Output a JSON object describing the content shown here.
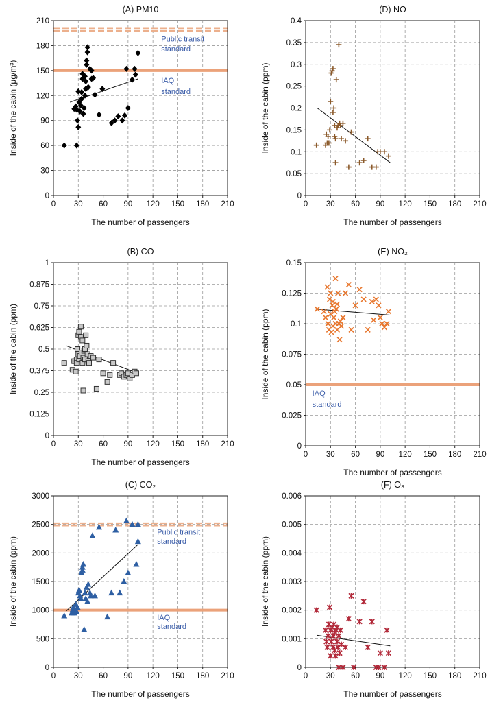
{
  "chart_data": [
    {
      "id": "A",
      "type": "scatter",
      "title": "(A) PM10",
      "xlabel": "The number of passengers",
      "ylabel": "Inside of the cabin (μg/m³)",
      "xlim": [
        0,
        210
      ],
      "xticks": [
        0,
        30,
        60,
        90,
        120,
        150,
        180,
        210
      ],
      "ylim": [
        0,
        210
      ],
      "yticks": [
        0,
        30,
        60,
        90,
        120,
        150,
        180,
        210
      ],
      "ytick_labels": [
        "0",
        "30",
        "60",
        "90",
        "120",
        "150",
        "180",
        "210"
      ],
      "marker": "diamond",
      "color": "#000000",
      "trend": [
        [
          20,
          112
        ],
        [
          102,
          140
        ]
      ],
      "reference_lines": [
        {
          "value": 199,
          "label": "Public transit standard",
          "label_lines": [
            "Public transit",
            "standard"
          ],
          "style": "dashed",
          "label_x": 130,
          "label_y": [
            185,
            173
          ]
        },
        {
          "value": 150,
          "label": "IAQ standard",
          "label_lines": [
            "IAQ",
            "standard"
          ],
          "style": "solid",
          "label_x": 130,
          "label_y": [
            135,
            122
          ]
        }
      ],
      "points": [
        [
          13,
          60
        ],
        [
          28,
          60
        ],
        [
          25,
          104
        ],
        [
          27,
          107
        ],
        [
          28,
          103
        ],
        [
          29,
          90
        ],
        [
          30,
          82
        ],
        [
          30,
          125
        ],
        [
          31,
          112
        ],
        [
          32,
          101
        ],
        [
          33,
          108
        ],
        [
          34,
          116
        ],
        [
          34,
          124
        ],
        [
          35,
          140
        ],
        [
          35,
          146
        ],
        [
          36,
          98
        ],
        [
          37,
          105
        ],
        [
          38,
          120
        ],
        [
          38,
          143
        ],
        [
          39,
          128
        ],
        [
          39,
          137
        ],
        [
          40,
          157
        ],
        [
          40,
          162
        ],
        [
          41,
          172
        ],
        [
          41,
          178
        ],
        [
          42,
          130
        ],
        [
          44,
          152
        ],
        [
          46,
          150
        ],
        [
          46,
          140
        ],
        [
          48,
          141
        ],
        [
          50,
          121
        ],
        [
          55,
          97
        ],
        [
          59,
          128
        ],
        [
          70,
          87
        ],
        [
          74,
          90
        ],
        [
          78,
          95
        ],
        [
          83,
          90
        ],
        [
          86,
          96
        ],
        [
          88,
          152
        ],
        [
          90,
          105
        ],
        [
          95,
          139
        ],
        [
          98,
          152
        ],
        [
          99,
          145
        ],
        [
          102,
          171
        ]
      ]
    },
    {
      "id": "B",
      "type": "scatter",
      "title": "(B) CO",
      "xlabel": "The number of passengers",
      "ylabel": "Inside of the cabin (ppm)",
      "xlim": [
        0,
        210
      ],
      "xticks": [
        0,
        30,
        60,
        90,
        120,
        150,
        180,
        210
      ],
      "ylim": [
        0,
        1
      ],
      "yticks": [
        0,
        0.125,
        0.25,
        0.375,
        0.5,
        0.625,
        0.75,
        0.875,
        1
      ],
      "ytick_labels": [
        "0",
        "0.125",
        "0.25",
        "0.375",
        "0.5",
        "0.625",
        "0.75",
        "0.875",
        "1"
      ],
      "marker": "square",
      "color": "#555555",
      "trend": [
        [
          15,
          0.52
        ],
        [
          102,
          0.36
        ]
      ],
      "reference_lines": [],
      "points": [
        [
          13,
          0.42
        ],
        [
          23,
          0.38
        ],
        [
          25,
          0.43
        ],
        [
          27,
          0.37
        ],
        [
          28,
          0.44
        ],
        [
          28,
          0.42
        ],
        [
          29,
          0.5
        ],
        [
          30,
          0.58
        ],
        [
          30,
          0.47
        ],
        [
          31,
          0.6
        ],
        [
          31,
          0.44
        ],
        [
          32,
          0.46
        ],
        [
          33,
          0.57
        ],
        [
          33,
          0.63
        ],
        [
          34,
          0.48
        ],
        [
          35,
          0.42
        ],
        [
          35,
          0.55
        ],
        [
          36,
          0.26
        ],
        [
          36,
          0.45
        ],
        [
          37,
          0.49
        ],
        [
          38,
          0.5
        ],
        [
          38,
          0.44
        ],
        [
          39,
          0.58
        ],
        [
          40,
          0.52
        ],
        [
          41,
          0.47
        ],
        [
          42,
          0.43
        ],
        [
          43,
          0.42
        ],
        [
          45,
          0.46
        ],
        [
          48,
          0.45
        ],
        [
          52,
          0.27
        ],
        [
          55,
          0.44
        ],
        [
          60,
          0.36
        ],
        [
          65,
          0.31
        ],
        [
          68,
          0.35
        ],
        [
          72,
          0.42
        ],
        [
          80,
          0.35
        ],
        [
          82,
          0.36
        ],
        [
          85,
          0.34
        ],
        [
          88,
          0.35
        ],
        [
          90,
          0.36
        ],
        [
          92,
          0.33
        ],
        [
          95,
          0.35
        ],
        [
          98,
          0.37
        ],
        [
          100,
          0.36
        ]
      ]
    },
    {
      "id": "C",
      "type": "scatter",
      "title": "(C) CO₂",
      "xlabel": "The number of passengers",
      "ylabel": "Inside of the cabin (ppm)",
      "xlim": [
        0,
        210
      ],
      "xticks": [
        0,
        30,
        60,
        90,
        120,
        150,
        180,
        210
      ],
      "ylim": [
        0,
        3000
      ],
      "yticks": [
        0,
        500,
        1000,
        1500,
        2000,
        2500,
        3000
      ],
      "ytick_labels": [
        "0",
        "500",
        "1000",
        "1500",
        "2000",
        "2500",
        "3000"
      ],
      "marker": "triangle",
      "color": "#2e5fa3",
      "trend": [
        [
          15,
          980
        ],
        [
          102,
          2150
        ]
      ],
      "reference_lines": [
        {
          "value": 2500,
          "label": "Public transit standard",
          "label_lines": [
            "Public transit",
            "standard"
          ],
          "style": "dashed",
          "label_x": 125,
          "label_y": [
            2320,
            2160
          ]
        },
        {
          "value": 1000,
          "label": "IAQ standard",
          "label_lines": [
            "IAQ",
            "standard"
          ],
          "style": "solid",
          "label_x": 125,
          "label_y": [
            830,
            670
          ]
        }
      ],
      "points": [
        [
          13,
          900
        ],
        [
          22,
          950
        ],
        [
          23,
          1000
        ],
        [
          24,
          1050
        ],
        [
          25,
          950
        ],
        [
          26,
          1000
        ],
        [
          27,
          1100
        ],
        [
          28,
          970
        ],
        [
          29,
          1050
        ],
        [
          30,
          1300
        ],
        [
          31,
          1350
        ],
        [
          32,
          1250
        ],
        [
          33,
          1200
        ],
        [
          34,
          1650
        ],
        [
          35,
          1700
        ],
        [
          35,
          1750
        ],
        [
          36,
          1800
        ],
        [
          37,
          660
        ],
        [
          38,
          1300
        ],
        [
          39,
          1200
        ],
        [
          40,
          1400
        ],
        [
          41,
          1150
        ],
        [
          42,
          1450
        ],
        [
          44,
          1300
        ],
        [
          45,
          1250
        ],
        [
          47,
          2300
        ],
        [
          50,
          1250
        ],
        [
          55,
          2450
        ],
        [
          65,
          880
        ],
        [
          70,
          1300
        ],
        [
          75,
          2400
        ],
        [
          80,
          1300
        ],
        [
          85,
          1500
        ],
        [
          88,
          2560
        ],
        [
          90,
          1650
        ],
        [
          95,
          2500
        ],
        [
          100,
          1800
        ],
        [
          102,
          2500
        ],
        [
          102,
          2200
        ]
      ]
    },
    {
      "id": "D",
      "type": "scatter",
      "title": "(D) NO",
      "xlabel": "The number of passengers",
      "ylabel": "Inside of the cabin (ppm)",
      "xlim": [
        0,
        210
      ],
      "xticks": [
        0,
        30,
        60,
        90,
        120,
        150,
        180,
        210
      ],
      "ylim": [
        0,
        0.4
      ],
      "yticks": [
        0,
        0.05,
        0.1,
        0.15,
        0.2,
        0.25,
        0.3,
        0.35,
        0.4
      ],
      "ytick_labels": [
        "0",
        "0.05",
        "0.1",
        "0.15",
        "0.2",
        "0.25",
        "0.3",
        "0.35",
        "0.4"
      ],
      "marker": "plus",
      "color": "#8b5a2b",
      "trend": [
        [
          14,
          0.2
        ],
        [
          102,
          0.075
        ]
      ],
      "reference_lines": [],
      "points": [
        [
          13,
          0.115
        ],
        [
          24,
          0.115
        ],
        [
          25,
          0.14
        ],
        [
          26,
          0.12
        ],
        [
          27,
          0.135
        ],
        [
          28,
          0.12
        ],
        [
          29,
          0.15
        ],
        [
          30,
          0.215
        ],
        [
          31,
          0.28
        ],
        [
          32,
          0.285
        ],
        [
          33,
          0.29
        ],
        [
          33,
          0.19
        ],
        [
          34,
          0.2
        ],
        [
          35,
          0.16
        ],
        [
          35,
          0.135
        ],
        [
          36,
          0.13
        ],
        [
          36,
          0.075
        ],
        [
          37,
          0.265
        ],
        [
          38,
          0.155
        ],
        [
          39,
          0.16
        ],
        [
          40,
          0.345
        ],
        [
          41,
          0.165
        ],
        [
          42,
          0.16
        ],
        [
          43,
          0.13
        ],
        [
          45,
          0.165
        ],
        [
          48,
          0.125
        ],
        [
          52,
          0.065
        ],
        [
          55,
          0.145
        ],
        [
          65,
          0.075
        ],
        [
          70,
          0.08
        ],
        [
          75,
          0.13
        ],
        [
          80,
          0.065
        ],
        [
          85,
          0.065
        ],
        [
          87,
          0.1
        ],
        [
          90,
          0.1
        ],
        [
          95,
          0.1
        ],
        [
          100,
          0.09
        ]
      ]
    },
    {
      "id": "E",
      "type": "scatter",
      "title": "(E) NO₂",
      "xlabel": "The number of passengers",
      "ylabel": "Inside of the cabin (ppm)",
      "xlim": [
        0,
        210
      ],
      "xticks": [
        0,
        30,
        60,
        90,
        120,
        150,
        180,
        210
      ],
      "ylim": [
        0,
        0.15
      ],
      "yticks": [
        0,
        0.025,
        0.05,
        0.075,
        0.1,
        0.125,
        0.15
      ],
      "ytick_labels": [
        "0",
        "0.025",
        "0.05",
        "0.075",
        "0.1",
        "0.125",
        "0.15"
      ],
      "marker": "x",
      "color": "#e8772e",
      "trend": [
        [
          12,
          0.112
        ],
        [
          102,
          0.107
        ]
      ],
      "reference_lines": [
        {
          "value": 0.05,
          "label": "IAQ standard",
          "label_lines": [
            "IAQ",
            "standard"
          ],
          "style": "solid",
          "label_x": 8,
          "label_y": [
            0.041,
            0.032
          ]
        }
      ],
      "points": [
        [
          14,
          0.112
        ],
        [
          22,
          0.11
        ],
        [
          24,
          0.105
        ],
        [
          26,
          0.13
        ],
        [
          27,
          0.1
        ],
        [
          28,
          0.095
        ],
        [
          29,
          0.12
        ],
        [
          30,
          0.108
        ],
        [
          30,
          0.125
        ],
        [
          31,
          0.093
        ],
        [
          32,
          0.115
        ],
        [
          33,
          0.118
        ],
        [
          33,
          0.098
        ],
        [
          34,
          0.105
        ],
        [
          35,
          0.11
        ],
        [
          36,
          0.1
        ],
        [
          36,
          0.137
        ],
        [
          37,
          0.112
        ],
        [
          38,
          0.095
        ],
        [
          38,
          0.116
        ],
        [
          39,
          0.125
        ],
        [
          40,
          0.1
        ],
        [
          41,
          0.087
        ],
        [
          42,
          0.102
        ],
        [
          43,
          0.098
        ],
        [
          45,
          0.105
        ],
        [
          48,
          0.125
        ],
        [
          52,
          0.132
        ],
        [
          55,
          0.095
        ],
        [
          60,
          0.115
        ],
        [
          65,
          0.128
        ],
        [
          70,
          0.12
        ],
        [
          75,
          0.095
        ],
        [
          80,
          0.118
        ],
        [
          82,
          0.103
        ],
        [
          85,
          0.12
        ],
        [
          88,
          0.115
        ],
        [
          90,
          0.105
        ],
        [
          92,
          0.1
        ],
        [
          95,
          0.097
        ],
        [
          98,
          0.1
        ],
        [
          100,
          0.11
        ]
      ]
    },
    {
      "id": "F",
      "type": "scatter",
      "title": "(F) O₃",
      "xlabel": "The number of passengers",
      "ylabel": "Inside of the cabin (ppm)",
      "xlim": [
        0,
        210
      ],
      "xticks": [
        0,
        30,
        60,
        90,
        120,
        150,
        180,
        210
      ],
      "ylim": [
        0,
        0.006
      ],
      "yticks": [
        0,
        0.001,
        0.002,
        0.003,
        0.004,
        0.005,
        0.006
      ],
      "ytick_labels": [
        "0",
        "0.001",
        "0.002",
        "0.003",
        "0.004",
        "0.005",
        "0.006"
      ],
      "marker": "star",
      "color": "#b22a3a",
      "trend": [
        [
          14,
          0.00112
        ],
        [
          102,
          0.00075
        ]
      ],
      "reference_lines": [],
      "points": [
        [
          13,
          0.002
        ],
        [
          24,
          0.0013
        ],
        [
          25,
          0.0009
        ],
        [
          26,
          0.0007
        ],
        [
          27,
          0.0011
        ],
        [
          28,
          0.0015
        ],
        [
          29,
          0.0021
        ],
        [
          30,
          0.0004
        ],
        [
          30,
          0.0013
        ],
        [
          31,
          0.0009
        ],
        [
          32,
          0.0014
        ],
        [
          33,
          0.0007
        ],
        [
          33,
          0.0011
        ],
        [
          34,
          0.0015
        ],
        [
          35,
          0.0006
        ],
        [
          35,
          0.0012
        ],
        [
          36,
          0.0004
        ],
        [
          37,
          0.0013
        ],
        [
          38,
          0.0014
        ],
        [
          38,
          0.0009
        ],
        [
          39,
          0.0007
        ],
        [
          40,
          0.0
        ],
        [
          40,
          0.0011
        ],
        [
          41,
          0.0005
        ],
        [
          42,
          0.0013
        ],
        [
          43,
          0.0008
        ],
        [
          45,
          0.0
        ],
        [
          48,
          0.0007
        ],
        [
          52,
          0.0017
        ],
        [
          55,
          0.0025
        ],
        [
          58,
          0.0
        ],
        [
          65,
          0.0016
        ],
        [
          70,
          0.0023
        ],
        [
          75,
          0.0007
        ],
        [
          80,
          0.0016
        ],
        [
          85,
          0.0
        ],
        [
          88,
          0.0
        ],
        [
          90,
          0.0005
        ],
        [
          95,
          0.0
        ],
        [
          98,
          0.0013
        ],
        [
          100,
          0.0005
        ]
      ]
    }
  ]
}
